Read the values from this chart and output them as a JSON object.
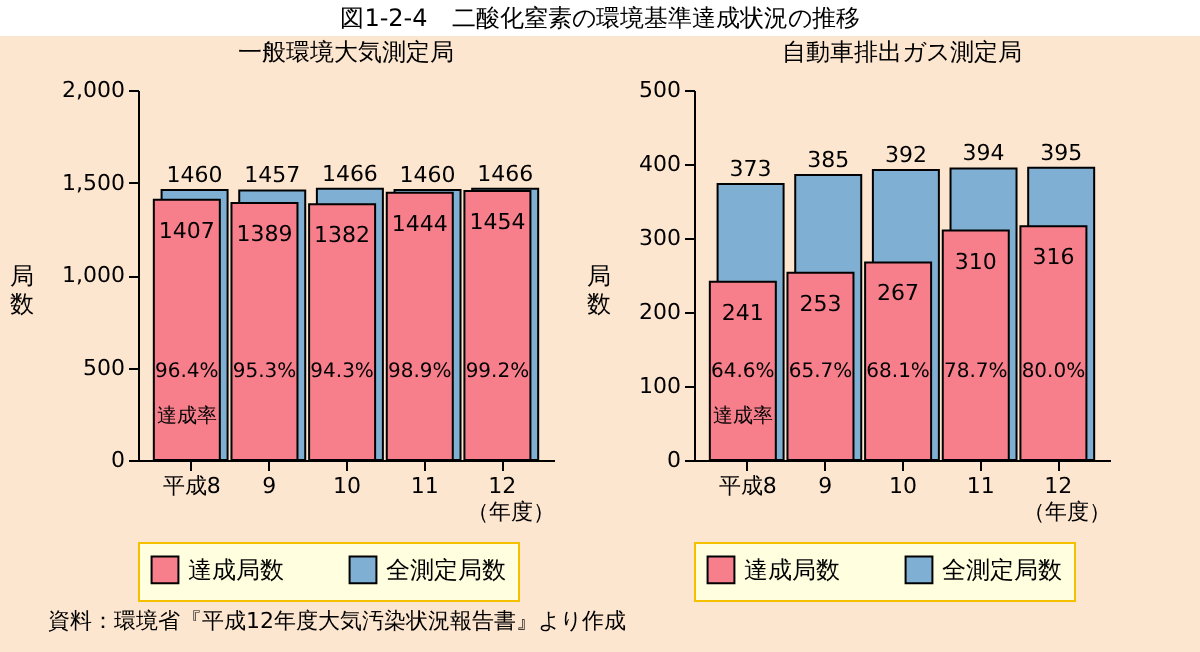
{
  "chart_data": [
    {
      "type": "bar",
      "title": "図1-2-4　二酸化窒素の環境基準達成状況の推移",
      "subtitle": "一般環境大気測定局",
      "categories": [
        "平成8",
        "9",
        "10",
        "11",
        "12"
      ],
      "series": [
        {
          "name": "達成局数",
          "color": "#f77f8c",
          "values": [
            1407,
            1389,
            1382,
            1444,
            1454
          ]
        },
        {
          "name": "全測定局数",
          "color": "#7fb0d4",
          "values": [
            1460,
            1457,
            1466,
            1460,
            1466
          ]
        }
      ],
      "ylim": [
        0,
        2000
      ],
      "yticks": [
        0,
        500,
        {
          "value": 1000,
          "label": "1,000"
        },
        {
          "value": 1500,
          "label": "1,500"
        },
        {
          "value": 2000,
          "label": "2,000"
        }
      ],
      "ylabel": "局数",
      "xlabel": "（年度）",
      "data_labels": true,
      "legend": "bottom",
      "annotations": [
        "96.4%",
        "95.3%",
        "94.3%",
        "98.9%",
        "99.2%",
        "達成率"
      ]
    },
    {
      "type": "bar",
      "subtitle": "自動車排出ガス測定局",
      "categories": [
        "平成8",
        "9",
        "10",
        "11",
        "12"
      ],
      "series": [
        {
          "name": "達成局数",
          "color": "#f77f8c",
          "values": [
            241,
            253,
            267,
            310,
            316
          ]
        },
        {
          "name": "全測定局数",
          "color": "#7fb0d4",
          "values": [
            373,
            385,
            392,
            394,
            395
          ]
        }
      ],
      "ylim": [
        0,
        500
      ],
      "yticks": [
        0,
        100,
        200,
        300,
        400,
        500
      ],
      "ylabel": "局数",
      "xlabel": "（年度）",
      "data_labels": true,
      "legend": "bottom",
      "annotations": [
        "64.6%",
        "65.7%",
        "68.1%",
        "78.7%",
        "80.0%",
        "達成率",
        "資料：環境省『平成12年度大気汚染状況報告書』より作成"
      ]
    }
  ]
}
